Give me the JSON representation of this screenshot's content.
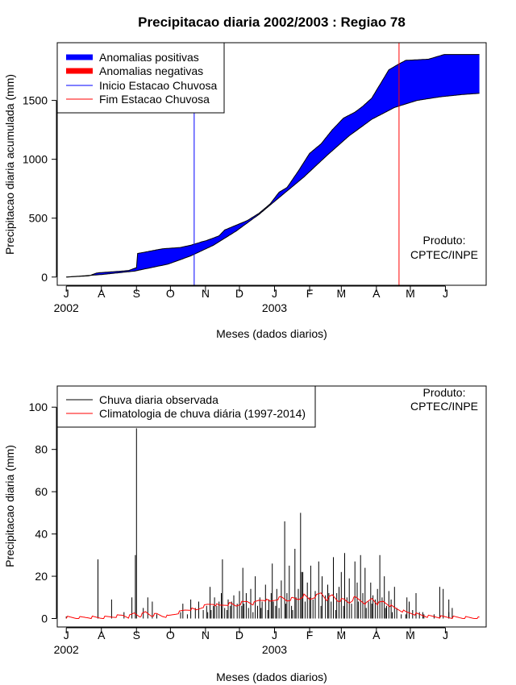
{
  "title": "Precipitacao diaria 2002/2003 : Regiao 78",
  "colors": {
    "positive": "#0000ff",
    "negative": "#ff0000",
    "observed": "#000000",
    "climatology": "#ff0000",
    "onset": "#0000ff",
    "end": "#ff0000",
    "climatology_line": "#ff0000"
  },
  "chart_data": [
    {
      "type": "area",
      "title": "Precipitacao diaria 2002/2003 : Regiao 78",
      "ylabel": "Precipitacao diaria acumulada (mm)",
      "xlabel": "Meses (dados diarios)",
      "ylim": [
        -70,
        1990
      ],
      "xlim": [
        -8,
        371
      ],
      "yticks": [
        0,
        500,
        1000,
        1500
      ],
      "month_ticks": [
        {
          "day": 0,
          "label": "J"
        },
        {
          "day": 31,
          "label": "A"
        },
        {
          "day": 62,
          "label": "S"
        },
        {
          "day": 92,
          "label": "O"
        },
        {
          "day": 123,
          "label": "N"
        },
        {
          "day": 153,
          "label": "D"
        },
        {
          "day": 184,
          "label": "J"
        },
        {
          "day": 215,
          "label": "F"
        },
        {
          "day": 243,
          "label": "M"
        },
        {
          "day": 274,
          "label": "A"
        },
        {
          "day": 304,
          "label": "M"
        },
        {
          "day": 335,
          "label": "J"
        }
      ],
      "year_labels": [
        {
          "day": 0,
          "label": "2002"
        },
        {
          "day": 184,
          "label": "2003"
        }
      ],
      "onset_day": 113,
      "end_day": 294,
      "observed_cumulative": {
        "x": [
          0,
          20,
          27,
          55,
          62,
          63,
          85,
          100,
          110,
          120,
          124,
          135,
          140,
          150,
          160,
          170,
          180,
          188,
          195,
          205,
          215,
          225,
          235,
          245,
          255,
          262,
          270,
          280,
          285,
          294,
          300,
          320,
          334,
          365
        ],
        "y": [
          0,
          10,
          35,
          55,
          80,
          200,
          240,
          250,
          270,
          300,
          310,
          350,
          400,
          440,
          480,
          540,
          620,
          720,
          760,
          900,
          1050,
          1130,
          1250,
          1350,
          1400,
          1450,
          1520,
          1680,
          1760,
          1810,
          1840,
          1850,
          1890,
          1890
        ]
      },
      "climatology_cumulative": {
        "x": [
          0,
          30,
          60,
          90,
          110,
          130,
          150,
          170,
          190,
          210,
          230,
          250,
          270,
          290,
          310,
          330,
          350,
          365
        ],
        "y": [
          0,
          20,
          50,
          110,
          180,
          270,
          390,
          530,
          690,
          850,
          1030,
          1200,
          1340,
          1440,
          1500,
          1530,
          1550,
          1560
        ]
      },
      "legend": {
        "position": "top-left",
        "entries": [
          "Anomalias positivas",
          "Anomalias negativas",
          "Inicio Estacao Chuvosa",
          "Fim Estacao Chuvosa"
        ]
      },
      "annotation": [
        "Produto:",
        "CPTEC/INPE"
      ]
    },
    {
      "type": "bar",
      "ylabel": "Precipitacao diaria (mm)",
      "xlabel": "Meses (dados diarios)",
      "ylim": [
        -4,
        110
      ],
      "xlim": [
        -8,
        371
      ],
      "yticks": [
        0,
        20,
        40,
        60,
        80,
        100
      ],
      "spikes": [
        [
          0,
          1
        ],
        [
          28,
          28
        ],
        [
          40,
          9
        ],
        [
          51,
          3
        ],
        [
          58,
          10
        ],
        [
          61,
          30
        ],
        [
          62,
          90
        ],
        [
          68,
          5
        ],
        [
          72,
          10
        ],
        [
          76,
          8
        ],
        [
          80,
          2
        ],
        [
          125,
          3
        ],
        [
          130,
          6
        ],
        [
          138,
          28
        ],
        [
          142,
          4
        ],
        [
          146,
          8
        ],
        [
          155,
          6
        ],
        [
          165,
          3
        ],
        [
          172,
          5
        ],
        [
          178,
          4
        ],
        [
          185,
          6
        ],
        [
          195,
          12
        ],
        [
          200,
          4
        ],
        [
          208,
          22
        ],
        [
          215,
          10
        ],
        [
          225,
          6
        ],
        [
          232,
          12
        ],
        [
          238,
          4
        ],
        [
          245,
          6
        ],
        [
          258,
          8
        ],
        [
          265,
          5
        ],
        [
          270,
          7
        ],
        [
          282,
          5
        ],
        [
          288,
          3
        ],
        [
          300,
          2
        ],
        [
          315,
          3
        ],
        [
          325,
          2
        ],
        [
          338,
          3
        ],
        [
          341,
          5
        ],
        [
          101,
          3
        ],
        [
          103,
          7
        ],
        [
          107,
          2
        ],
        [
          110,
          9
        ],
        [
          114,
          5
        ],
        [
          117,
          8
        ],
        [
          121,
          4
        ],
        [
          124,
          6
        ],
        [
          127,
          15
        ],
        [
          128,
          4
        ],
        [
          131,
          10
        ],
        [
          133,
          6
        ],
        [
          135,
          8
        ],
        [
          137,
          12
        ],
        [
          140,
          5
        ],
        [
          143,
          9
        ],
        [
          145,
          6
        ],
        [
          148,
          11
        ],
        [
          151,
          7
        ],
        [
          153,
          13
        ],
        [
          156,
          24
        ],
        [
          157,
          7
        ],
        [
          159,
          12
        ],
        [
          161,
          5
        ],
        [
          163,
          14
        ],
        [
          167,
          20
        ],
        [
          169,
          6
        ],
        [
          171,
          10
        ],
        [
          173,
          8
        ],
        [
          176,
          16
        ],
        [
          179,
          9
        ],
        [
          181,
          12
        ],
        [
          182,
          26
        ],
        [
          183,
          8
        ],
        [
          186,
          14
        ],
        [
          188,
          5
        ],
        [
          190,
          18
        ],
        [
          193,
          46
        ],
        [
          194,
          7
        ],
        [
          197,
          25
        ],
        [
          199,
          6
        ],
        [
          202,
          33
        ],
        [
          203,
          10
        ],
        [
          205,
          14
        ],
        [
          207,
          50
        ],
        [
          209,
          22
        ],
        [
          211,
          8
        ],
        [
          213,
          17
        ],
        [
          216,
          25
        ],
        [
          218,
          9
        ],
        [
          220,
          13
        ],
        [
          223,
          27
        ],
        [
          226,
          20
        ],
        [
          229,
          11
        ],
        [
          231,
          16
        ],
        [
          234,
          8
        ],
        [
          236,
          29
        ],
        [
          239,
          12
        ],
        [
          241,
          15
        ],
        [
          243,
          22
        ],
        [
          246,
          31
        ],
        [
          248,
          10
        ],
        [
          250,
          19
        ],
        [
          252,
          7
        ],
        [
          255,
          27
        ],
        [
          257,
          17
        ],
        [
          260,
          30
        ],
        [
          262,
          12
        ],
        [
          264,
          24
        ],
        [
          267,
          8
        ],
        [
          269,
          17
        ],
        [
          271,
          11
        ],
        [
          273,
          9
        ],
        [
          275,
          14
        ],
        [
          277,
          30
        ],
        [
          279,
          10
        ],
        [
          281,
          20
        ],
        [
          283,
          6
        ],
        [
          285,
          13
        ],
        [
          287,
          9
        ],
        [
          290,
          15
        ],
        [
          292,
          5
        ],
        [
          296,
          2
        ],
        [
          301,
          10
        ],
        [
          303,
          8
        ],
        [
          306,
          4
        ],
        [
          309,
          12
        ],
        [
          312,
          3
        ],
        [
          316,
          2
        ],
        [
          330,
          15
        ],
        [
          333,
          14
        ],
        [
          338,
          9
        ]
      ],
      "climatology": {
        "x": [
          0,
          10,
          20,
          30,
          40,
          50,
          55,
          60,
          65,
          70,
          75,
          80,
          85,
          90,
          95,
          100,
          105,
          110,
          115,
          120,
          125,
          130,
          135,
          140,
          145,
          150,
          155,
          160,
          165,
          170,
          175,
          180,
          185,
          190,
          195,
          200,
          205,
          210,
          215,
          220,
          225,
          230,
          235,
          240,
          245,
          250,
          255,
          260,
          265,
          270,
          275,
          280,
          285,
          290,
          295,
          300,
          305,
          310,
          315,
          320,
          330,
          340,
          350,
          365
        ],
        "y": [
          0.5,
          0.3,
          0.6,
          0.4,
          0.8,
          1.5,
          0.8,
          2.5,
          1.2,
          3.0,
          1.5,
          2.0,
          1.2,
          1.0,
          2.0,
          3.0,
          4.0,
          4.5,
          4.0,
          5.5,
          6.5,
          7.0,
          6.0,
          6.5,
          7.0,
          6.0,
          7.5,
          8.0,
          7.0,
          8.5,
          9.0,
          8.0,
          9.0,
          10.0,
          8.5,
          9.5,
          9.0,
          11.0,
          9.0,
          10.5,
          12.0,
          9.0,
          11.0,
          8.5,
          9.0,
          7.5,
          10.0,
          8.5,
          7.0,
          9.5,
          7.0,
          8.0,
          6.5,
          5.0,
          4.0,
          3.0,
          2.5,
          2.0,
          1.5,
          1.0,
          0.8,
          0.6,
          0.4,
          0.2
        ]
      },
      "legend": {
        "position": "top-left",
        "entries": [
          "Chuva diaria observada",
          "Climatologia de chuva diária (1997-2014)"
        ]
      },
      "annotation": [
        "Produto:",
        "CPTEC/INPE"
      ]
    }
  ]
}
